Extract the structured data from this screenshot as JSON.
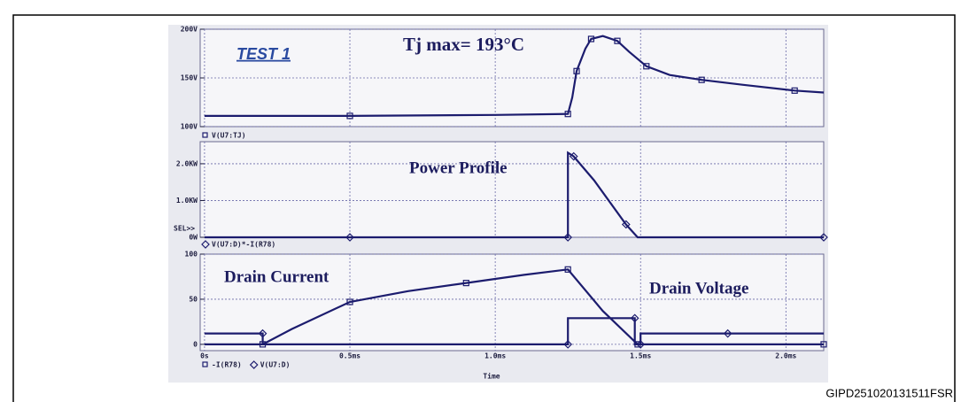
{
  "figure_id": "GIPD251020131511FSR",
  "chart_data": [
    {
      "type": "line",
      "annotations": [
        "TEST 1",
        "Tj max= 193°C"
      ],
      "series": [
        {
          "name": "V(U7:TJ)",
          "color": "#1c1c6e",
          "marker": "square",
          "x": [
            0,
            0.5,
            1.0,
            1.25,
            1.265,
            1.28,
            1.31,
            1.33,
            1.37,
            1.42,
            1.46,
            1.52,
            1.6,
            1.71,
            1.85,
            2.03,
            2.13
          ],
          "values": [
            111,
            111,
            112,
            113,
            130,
            157,
            180,
            190,
            193,
            188,
            177,
            162,
            153,
            148,
            143,
            137,
            135
          ]
        }
      ],
      "xlim": [
        -0.015,
        2.13
      ],
      "ylim": [
        100,
        200
      ],
      "yticks": [
        {
          "value": 200,
          "label": "200V"
        },
        {
          "value": 150,
          "label": "150V"
        },
        {
          "value": 100,
          "label": "100V"
        }
      ],
      "grid": true
    },
    {
      "type": "line",
      "annotations": [
        "Power Profile",
        "SEL>>"
      ],
      "series": [
        {
          "name": "V(U7:D)*-I(R78)",
          "color": "#1c1c6e",
          "marker": "diamond",
          "x": [
            0,
            0.5,
            1.0,
            1.25,
            1.25,
            1.27,
            1.34,
            1.45,
            1.49,
            2.13
          ],
          "values": [
            0,
            0,
            0,
            0,
            2.3,
            2.2,
            1.55,
            0.35,
            0,
            0
          ]
        }
      ],
      "xlim": [
        -0.015,
        2.13
      ],
      "ylim": [
        0,
        2.6
      ],
      "yticks": [
        {
          "value": 2,
          "label": "2.0KW"
        },
        {
          "value": 1,
          "label": "1.0KW"
        },
        {
          "value": 0,
          "label": "0W"
        }
      ],
      "grid": true
    },
    {
      "type": "line",
      "annotations": [
        "Drain Current",
        "Drain Voltage"
      ],
      "x_label": "Time",
      "series": [
        {
          "name": "-I(R78)",
          "color": "#1c1c6e",
          "marker": "square",
          "x": [
            0,
            0.2,
            0.3,
            0.5,
            0.7,
            0.9,
            1.1,
            1.25,
            1.37,
            1.49,
            1.8,
            2.13
          ],
          "values": [
            0,
            0,
            17,
            47,
            59,
            68,
            77,
            83,
            37,
            0,
            0,
            0
          ]
        },
        {
          "name": "V(U7:D)",
          "color": "#1c1c6e",
          "marker": "diamond",
          "x": [
            0,
            0.2,
            0.2,
            1.25,
            1.25,
            1.48,
            1.48,
            1.5,
            1.5,
            1.8,
            2.13
          ],
          "values": [
            12,
            12,
            0,
            0,
            29,
            29,
            0,
            0,
            12,
            12,
            12
          ]
        }
      ],
      "xlim": [
        -0.015,
        2.13
      ],
      "xticks": [
        {
          "value": 0,
          "label": "0s"
        },
        {
          "value": 0.5,
          "label": "0.5ms"
        },
        {
          "value": 1,
          "label": "1.0ms"
        },
        {
          "value": 1.5,
          "label": "1.5ms"
        },
        {
          "value": 2,
          "label": "2.0ms"
        }
      ],
      "ylim": [
        -7,
        100
      ],
      "yticks": [
        100,
        50,
        0
      ],
      "grid": true
    }
  ]
}
